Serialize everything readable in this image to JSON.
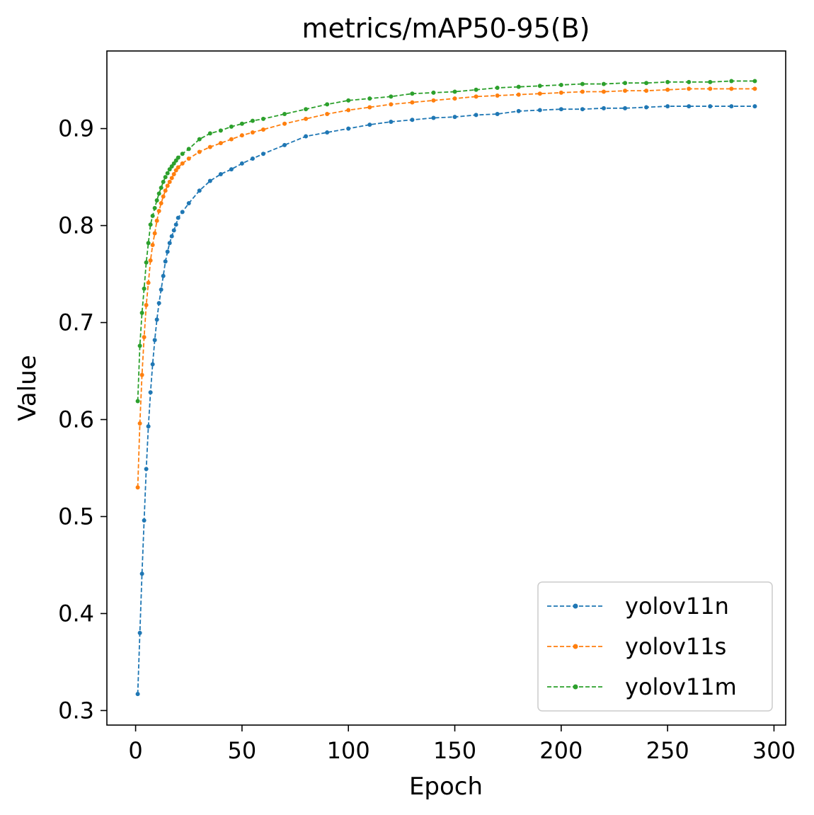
{
  "chart_data": {
    "type": "line",
    "title": "metrics/mAP50-95(B)",
    "xlabel": "Epoch",
    "ylabel": "Value",
    "xlim": [
      -13.5,
      305.5
    ],
    "ylim": [
      0.285,
      0.98
    ],
    "xticks": [
      0,
      50,
      100,
      150,
      200,
      250,
      300
    ],
    "yticks": [
      0.3,
      0.4,
      0.5,
      0.6,
      0.7,
      0.8,
      0.9
    ],
    "ytick_labels": [
      "0.3",
      "0.4",
      "0.5",
      "0.6",
      "0.7",
      "0.8",
      "0.9"
    ],
    "grid": false,
    "legend_position": "lower right",
    "line_style": "dashed with dot markers",
    "series": [
      {
        "name": "yolov11n",
        "color": "#1f77b4",
        "x": [
          1,
          2,
          3,
          4,
          5,
          6,
          7,
          8,
          9,
          10,
          11,
          12,
          13,
          14,
          15,
          16,
          17,
          18,
          19,
          20,
          22,
          25,
          30,
          35,
          40,
          45,
          50,
          55,
          60,
          70,
          80,
          90,
          100,
          110,
          120,
          130,
          140,
          150,
          160,
          170,
          180,
          190,
          200,
          210,
          220,
          230,
          240,
          250,
          260,
          270,
          280,
          291
        ],
        "y": [
          0.317,
          0.38,
          0.441,
          0.496,
          0.549,
          0.593,
          0.628,
          0.657,
          0.682,
          0.703,
          0.72,
          0.734,
          0.748,
          0.763,
          0.773,
          0.782,
          0.789,
          0.795,
          0.801,
          0.808,
          0.814,
          0.823,
          0.836,
          0.846,
          0.853,
          0.858,
          0.864,
          0.869,
          0.874,
          0.883,
          0.892,
          0.896,
          0.9,
          0.904,
          0.907,
          0.909,
          0.911,
          0.912,
          0.914,
          0.915,
          0.918,
          0.919,
          0.92,
          0.92,
          0.921,
          0.921,
          0.922,
          0.923,
          0.923,
          0.923,
          0.923,
          0.923
        ]
      },
      {
        "name": "yolov11s",
        "color": "#ff7f0e",
        "x": [
          1,
          2,
          3,
          4,
          5,
          6,
          7,
          8,
          9,
          10,
          11,
          12,
          13,
          14,
          15,
          16,
          17,
          18,
          19,
          20,
          22,
          25,
          30,
          35,
          40,
          45,
          50,
          55,
          60,
          70,
          80,
          90,
          100,
          110,
          120,
          130,
          140,
          150,
          160,
          170,
          180,
          190,
          200,
          210,
          220,
          230,
          240,
          250,
          260,
          270,
          280,
          291
        ],
        "y": [
          0.53,
          0.596,
          0.646,
          0.685,
          0.718,
          0.741,
          0.764,
          0.78,
          0.792,
          0.805,
          0.815,
          0.823,
          0.83,
          0.836,
          0.841,
          0.845,
          0.849,
          0.853,
          0.857,
          0.86,
          0.864,
          0.869,
          0.876,
          0.881,
          0.885,
          0.889,
          0.893,
          0.896,
          0.899,
          0.905,
          0.91,
          0.915,
          0.919,
          0.922,
          0.925,
          0.927,
          0.929,
          0.931,
          0.933,
          0.934,
          0.935,
          0.936,
          0.937,
          0.938,
          0.938,
          0.939,
          0.939,
          0.94,
          0.941,
          0.941,
          0.941,
          0.941
        ]
      },
      {
        "name": "yolov11m",
        "color": "#2ca02c",
        "x": [
          1,
          2,
          3,
          4,
          5,
          6,
          7,
          8,
          9,
          10,
          11,
          12,
          13,
          14,
          15,
          16,
          17,
          18,
          19,
          20,
          22,
          25,
          30,
          35,
          40,
          45,
          50,
          55,
          60,
          70,
          80,
          90,
          100,
          110,
          120,
          130,
          140,
          150,
          160,
          170,
          180,
          190,
          200,
          210,
          220,
          230,
          240,
          250,
          260,
          270,
          280,
          291
        ],
        "y": [
          0.619,
          0.676,
          0.71,
          0.735,
          0.762,
          0.782,
          0.801,
          0.81,
          0.818,
          0.826,
          0.833,
          0.839,
          0.845,
          0.85,
          0.854,
          0.858,
          0.861,
          0.864,
          0.867,
          0.87,
          0.874,
          0.879,
          0.889,
          0.895,
          0.898,
          0.902,
          0.905,
          0.908,
          0.91,
          0.915,
          0.92,
          0.925,
          0.929,
          0.931,
          0.933,
          0.936,
          0.937,
          0.938,
          0.94,
          0.942,
          0.943,
          0.944,
          0.945,
          0.946,
          0.946,
          0.947,
          0.947,
          0.948,
          0.948,
          0.948,
          0.949,
          0.949
        ]
      }
    ]
  }
}
